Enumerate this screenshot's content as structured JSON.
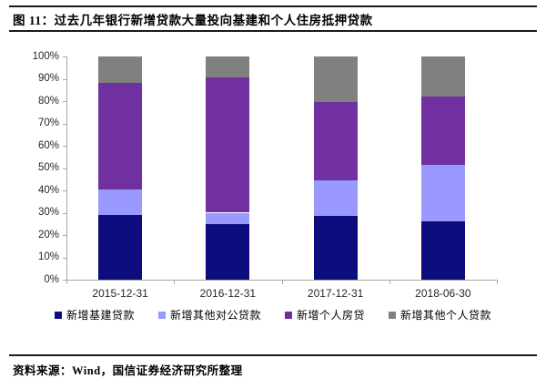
{
  "figure": {
    "title": "图 11：过去几年银行新增贷款大量投向基建和个人住房抵押贷款",
    "source": "资料来源：Wind，国信证券经济研究所整理"
  },
  "colors": {
    "navy": "#0C0C7C",
    "periwinkle": "#9999FF",
    "purple": "#7030A0",
    "gray": "#808080",
    "axis": "#A6A6A6",
    "rule": "#1A1A1A"
  },
  "chart_data": {
    "type": "bar",
    "stacked": true,
    "title": "图 11：过去几年银行新增贷款大量投向基建和个人住房抵押贷款",
    "categories": [
      "2015-12-31",
      "2016-12-31",
      "2017-12-31",
      "2018-06-30"
    ],
    "series": [
      {
        "name": "新增基建贷款",
        "color_key": "navy",
        "values": [
          29.0,
          25.0,
          28.5,
          26.0
        ]
      },
      {
        "name": "新增其他对公贷款",
        "color_key": "periwinkle",
        "values": [
          11.5,
          5.0,
          16.0,
          25.5
        ]
      },
      {
        "name": "新增个人房贷",
        "color_key": "purple",
        "values": [
          47.5,
          60.5,
          35.0,
          30.5
        ]
      },
      {
        "name": "新增其他个人贷款",
        "color_key": "gray",
        "values": [
          12.0,
          9.5,
          20.5,
          18.0
        ]
      }
    ],
    "ylim": [
      0,
      100
    ],
    "ytick_step": 10,
    "ytick_suffix": "%",
    "grid": false,
    "legend_position": "bottom"
  }
}
